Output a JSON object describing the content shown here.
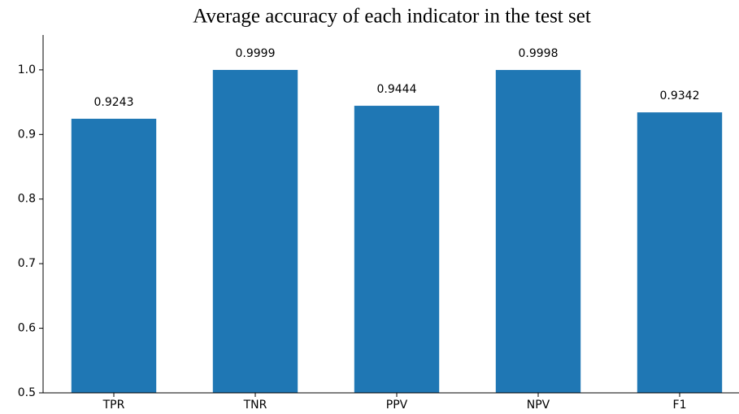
{
  "chart_data": {
    "type": "bar",
    "title": "Average accuracy of each indicator in the test set",
    "categories": [
      "TPR",
      "TNR",
      "PPV",
      "NPV",
      "F1"
    ],
    "values": [
      0.9243,
      0.9999,
      0.9444,
      0.9998,
      0.9342
    ],
    "color": "#1f77b4",
    "ylim": [
      0.5,
      1.054
    ],
    "yticks": [
      0.5,
      0.6,
      0.7,
      0.8,
      0.9,
      {
        "value": 1,
        "label": "1.0"
      }
    ]
  }
}
